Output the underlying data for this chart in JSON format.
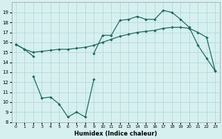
{
  "xlabel": "Humidex (Indice chaleur)",
  "bg_color": "#d6f0f0",
  "grid_color": "#b8d8d8",
  "line_color": "#1a6a5a",
  "xlim": [
    -0.5,
    23.5
  ],
  "ylim": [
    8,
    20
  ],
  "yticks": [
    8,
    9,
    10,
    11,
    12,
    13,
    14,
    15,
    16,
    17,
    18,
    19
  ],
  "xticks": [
    0,
    1,
    2,
    3,
    4,
    5,
    6,
    7,
    8,
    9,
    10,
    11,
    12,
    13,
    14,
    15,
    16,
    17,
    18,
    19,
    20,
    21,
    22,
    23
  ],
  "line1_x": [
    0,
    1,
    2,
    9,
    10,
    11,
    12,
    13,
    14,
    15,
    16,
    17,
    18,
    19,
    20,
    21,
    22,
    23
  ],
  "line1_y": [
    15.8,
    15.3,
    14.6,
    14.9,
    16.7,
    16.7,
    18.2,
    18.3,
    18.6,
    18.3,
    18.3,
    19.2,
    19.0,
    18.3,
    17.5,
    15.7,
    14.4,
    13.1
  ],
  "line2_x": [
    0,
    1,
    2,
    3,
    4,
    5,
    6,
    7,
    8,
    9,
    10,
    11,
    12,
    13,
    14,
    15,
    16,
    17,
    18,
    19,
    20,
    21,
    22,
    23
  ],
  "line2_y": [
    15.8,
    15.3,
    15.0,
    15.1,
    15.2,
    15.3,
    15.3,
    15.4,
    15.5,
    15.7,
    16.0,
    16.3,
    16.6,
    16.8,
    17.0,
    17.1,
    17.2,
    17.4,
    17.5,
    17.5,
    17.4,
    17.0,
    16.5,
    13.1
  ],
  "line3_x": [
    2,
    3,
    4,
    5,
    6,
    7,
    8,
    9
  ],
  "line3_y": [
    12.6,
    10.4,
    10.5,
    9.8,
    8.5,
    9.0,
    8.5,
    12.3
  ]
}
